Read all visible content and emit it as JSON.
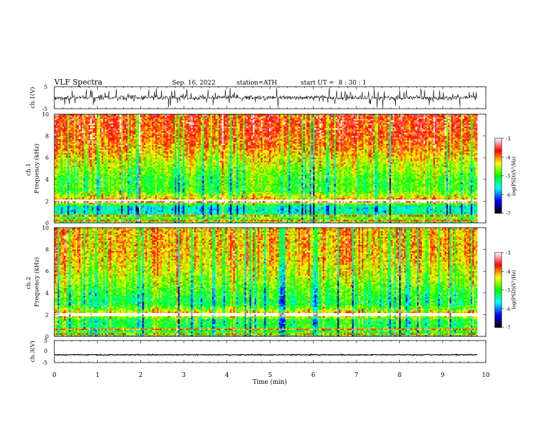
{
  "header": {
    "title": "VLF Spectra",
    "date": "Sep. 16, 2022",
    "station": "station=ATH",
    "start_label": "start UT =",
    "start_time": "8 : 30 : 1"
  },
  "chart_data": [
    {
      "type": "line",
      "name": "ch1-waveform",
      "ylabel": "ch.1(V)",
      "ylim": [
        -5,
        5
      ],
      "y_ticks": [
        "5",
        "-5"
      ],
      "xlim": [
        0,
        10
      ],
      "data_end_min": 9.8,
      "baseline": 0.0,
      "amplitude_typical": 1.2,
      "amplitude_max": 4.5
    },
    {
      "type": "heatmap",
      "name": "ch1-spectrogram",
      "ylabel": "ch.1\nFrequency (kHz)",
      "ylim": [
        0,
        10
      ],
      "y_ticks": [
        "0",
        "2",
        "4",
        "6",
        "8",
        "10"
      ],
      "xlim": [
        0,
        10
      ],
      "data_end_min": 9.8,
      "colorbar": {
        "label": "log(PSD)(V²/Hz)",
        "range": [
          -7,
          -3
        ],
        "ticks": [
          "-3",
          "-4",
          "-5",
          "-6",
          "-7"
        ]
      },
      "mean_logpsd_by_frequency_kHz": [
        {
          "f": 0.5,
          "v": -4.8
        },
        {
          "f": 1.0,
          "v": -5.6
        },
        {
          "f": 1.5,
          "v": -5.5
        },
        {
          "f": 2.0,
          "v": -4.0
        },
        {
          "f": 3.0,
          "v": -4.9
        },
        {
          "f": 4.0,
          "v": -4.9
        },
        {
          "f": 5.0,
          "v": -4.6
        },
        {
          "f": 6.0,
          "v": -4.3
        },
        {
          "f": 7.0,
          "v": -4.0
        },
        {
          "f": 8.0,
          "v": -3.8
        },
        {
          "f": 9.0,
          "v": -3.7
        },
        {
          "f": 10.0,
          "v": -3.7
        }
      ],
      "horizontal_lines_kHz": [
        0.2,
        0.6,
        2.0,
        2.1
      ]
    },
    {
      "type": "heatmap",
      "name": "ch2-spectrogram",
      "ylabel": "ch.2\nFrequency (kHz)",
      "ylim": [
        0,
        10
      ],
      "y_ticks": [
        "0",
        "2",
        "4",
        "6",
        "8",
        "10"
      ],
      "xlim": [
        0,
        10
      ],
      "data_end_min": 9.8,
      "colorbar": {
        "label": "log(PSD)(V²/Hz)",
        "range": [
          -7,
          -3
        ],
        "ticks": [
          "-3",
          "-4",
          "-5",
          "-6",
          "-7"
        ]
      },
      "mean_logpsd_by_frequency_kHz": [
        {
          "f": 0.5,
          "v": -4.9
        },
        {
          "f": 1.0,
          "v": -5.0
        },
        {
          "f": 1.5,
          "v": -5.0
        },
        {
          "f": 2.0,
          "v": -4.0
        },
        {
          "f": 3.0,
          "v": -5.1
        },
        {
          "f": 4.0,
          "v": -4.9
        },
        {
          "f": 5.0,
          "v": -4.6
        },
        {
          "f": 6.0,
          "v": -4.4
        },
        {
          "f": 7.0,
          "v": -4.2
        },
        {
          "f": 8.0,
          "v": -4.1
        },
        {
          "f": 9.0,
          "v": -4.1
        },
        {
          "f": 10.0,
          "v": -4.1
        }
      ],
      "horizontal_lines_kHz": [
        0.2,
        0.6,
        1.9,
        2.0,
        2.1
      ]
    },
    {
      "type": "line",
      "name": "ch3-waveform",
      "ylabel": "ch.3(V)",
      "ylim": [
        -5,
        5
      ],
      "y_ticks": [
        "5",
        "0",
        "-5"
      ],
      "xlim": [
        0,
        10
      ],
      "data_end_min": 9.8,
      "baseline": -1.5,
      "amplitude_typical": 0.25,
      "amplitude_max": 0.3
    }
  ],
  "x_axis": {
    "label": "Time (min)",
    "ticks": [
      "0",
      "1",
      "2",
      "3",
      "4",
      "5",
      "6",
      "7",
      "8",
      "9",
      "10"
    ],
    "range": [
      0,
      10
    ]
  },
  "colormap": [
    "#000000",
    "#0000ff",
    "#00ffff",
    "#00ff00",
    "#ffff00",
    "#ff0000",
    "#ffffff"
  ]
}
